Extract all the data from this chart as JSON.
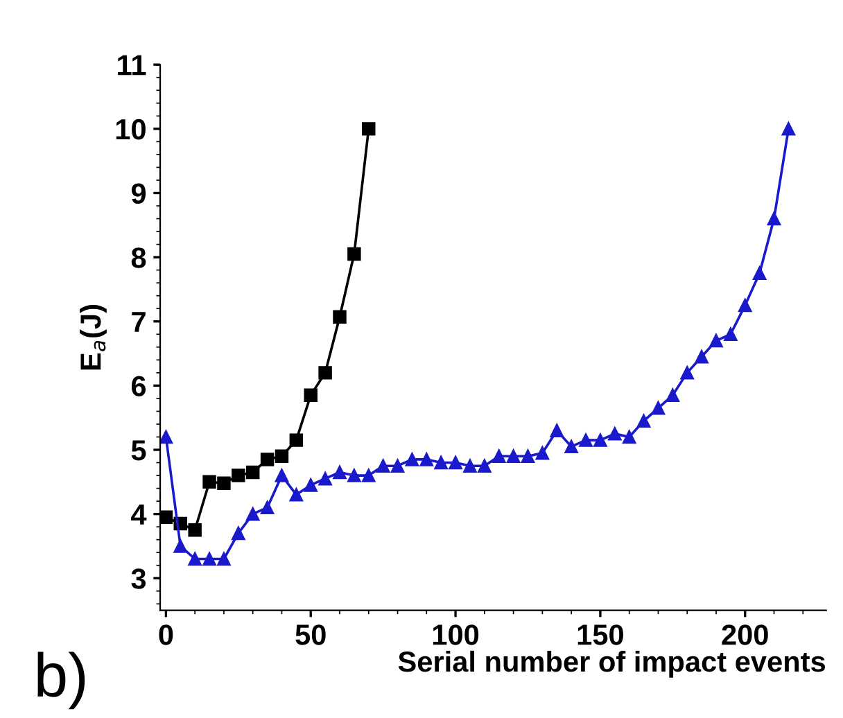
{
  "chart_data": {
    "type": "line",
    "xlabel": "Serial number of impact events",
    "ylabel": "E$_{a}$(J)",
    "annotations": [
      "b)"
    ],
    "xlim": [
      -2,
      228
    ],
    "ylim": [
      2.5,
      11
    ],
    "xticks": [
      0,
      50,
      100,
      150,
      200
    ],
    "yticks": [
      3,
      4,
      5,
      6,
      7,
      8,
      9,
      10,
      11
    ],
    "grid": false,
    "legend": false,
    "series": [
      {
        "color": "#000000",
        "marker": "square",
        "x": [
          0,
          5,
          10,
          15,
          20,
          25,
          30,
          35,
          40,
          45,
          50,
          55,
          60,
          65,
          70
        ],
        "values": [
          3.95,
          3.85,
          3.75,
          4.5,
          4.48,
          4.6,
          4.65,
          4.85,
          4.9,
          5.15,
          5.85,
          6.2,
          7.07,
          8.05,
          10.0
        ]
      },
      {
        "color": "#1a1acc",
        "marker": "triangle",
        "x": [
          0,
          5,
          10,
          15,
          20,
          25,
          30,
          35,
          40,
          45,
          50,
          55,
          60,
          65,
          70,
          75,
          80,
          85,
          90,
          95,
          100,
          105,
          110,
          115,
          120,
          125,
          130,
          135,
          140,
          145,
          150,
          155,
          160,
          165,
          170,
          175,
          180,
          185,
          190,
          195,
          200,
          205,
          210,
          215
        ],
        "values": [
          5.2,
          3.5,
          3.3,
          3.3,
          3.3,
          3.7,
          4.0,
          4.1,
          4.6,
          4.3,
          4.45,
          4.55,
          4.65,
          4.6,
          4.6,
          4.75,
          4.75,
          4.85,
          4.85,
          4.8,
          4.8,
          4.75,
          4.75,
          4.9,
          4.9,
          4.9,
          4.95,
          5.3,
          5.05,
          5.15,
          5.15,
          5.25,
          5.2,
          5.45,
          5.65,
          5.85,
          6.2,
          6.45,
          6.7,
          6.8,
          7.25,
          7.75,
          8.6,
          10.0
        ]
      }
    ]
  }
}
